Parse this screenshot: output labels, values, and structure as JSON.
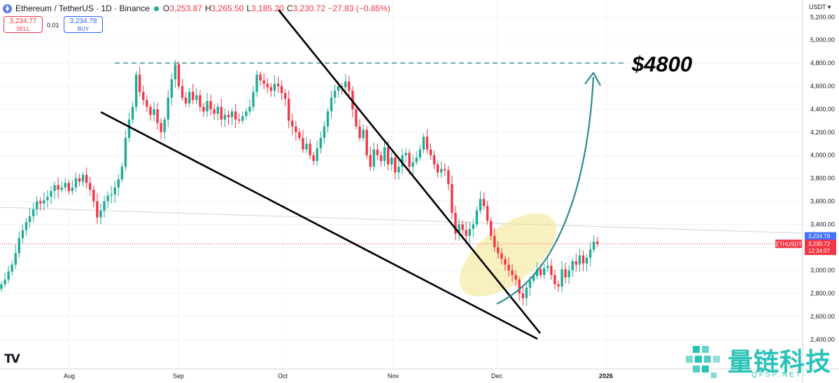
{
  "header": {
    "symbol": "Ethereum / TetherUS · 1D · Binance",
    "o_label": "O",
    "o_value": "3,253.87",
    "h_label": "H",
    "h_value": "3,265.50",
    "l_label": "L",
    "l_value": "3,185.20",
    "c_label": "C",
    "c_value": "3,230.72 −27.83 (−0.85%)"
  },
  "trade": {
    "sell_price": "3,234.77",
    "sell_label": "SELL",
    "spread": "0.01",
    "buy_price": "3,234.78",
    "buy_label": "BUY"
  },
  "currency": "USDT",
  "annotation": "$4800",
  "watermark": {
    "cn": "量链科技",
    "en": "QFSP.NET"
  },
  "chart_data": {
    "type": "candlestick",
    "y_ticks": [
      "2,400.00",
      "2,600.00",
      "2,800.00",
      "3,000.00",
      "3,200.00",
      "3,400.00",
      "3,600.00",
      "3,800.00",
      "4,000.00",
      "4,200.00",
      "4,400.00",
      "4,600.00",
      "4,800.00",
      "5,000.00",
      "5,200.00"
    ],
    "x_labels": [
      "Aug",
      "Sep",
      "Oct",
      "Nov",
      "Dec",
      "2026"
    ],
    "price_label": {
      "symbol": "ETHUSDT",
      "ask": "3,234.78",
      "last": "3,230.72",
      "countdown": "12:34:07"
    },
    "target_level": 4800,
    "colors": {
      "up": "#22ab94",
      "down": "#f23645",
      "trendline": "#000000",
      "target_line": "#2e8b8b",
      "arrow": "#2e8b8b",
      "highlight": "#f3e58a"
    },
    "closes": [
      2880,
      2920,
      2990,
      3050,
      3150,
      3280,
      3350,
      3420,
      3470,
      3530,
      3600,
      3580,
      3610,
      3640,
      3690,
      3740,
      3700,
      3720,
      3760,
      3690,
      3720,
      3800,
      3770,
      3830,
      3760,
      3700,
      3600,
      3460,
      3520,
      3600,
      3650,
      3660,
      3720,
      3790,
      3900,
      4150,
      4310,
      4420,
      4700,
      4550,
      4480,
      4420,
      4350,
      4400,
      4280,
      4200,
      4310,
      4500,
      4660,
      4790,
      4600,
      4500,
      4450,
      4550,
      4480,
      4520,
      4420,
      4380,
      4470,
      4400,
      4360,
      4420,
      4310,
      4350,
      4330,
      4380,
      4310,
      4300,
      4340,
      4380,
      4420,
      4550,
      4700,
      4650,
      4620,
      4590,
      4560,
      4620,
      4600,
      4540,
      4490,
      4300,
      4250,
      4200,
      4150,
      4050,
      4100,
      4000,
      3950,
      4060,
      4150,
      4250,
      4380,
      4500,
      4560,
      4600,
      4590,
      4640,
      4560,
      4400,
      4250,
      4150,
      4220,
      4000,
      3900,
      4050,
      4000,
      3950,
      4070,
      3920,
      3980,
      3850,
      3900,
      4000,
      4020,
      3900,
      3940,
      3980,
      4050,
      4160,
      4050,
      4000,
      3920,
      3850,
      3880,
      3870,
      3750,
      3500,
      3320,
      3400,
      3350,
      3300,
      3360,
      3400,
      3520,
      3620,
      3560,
      3430,
      3300,
      3200,
      3150,
      3100,
      3050,
      3000,
      2960,
      2920,
      2800,
      2760,
      2850,
      2910,
      2950,
      3010,
      2960,
      3020,
      3040,
      2960,
      2880,
      2860,
      3010,
      2940,
      3000,
      3080,
      3050,
      3130,
      3060,
      3110,
      3180,
      3250,
      3231
    ]
  }
}
